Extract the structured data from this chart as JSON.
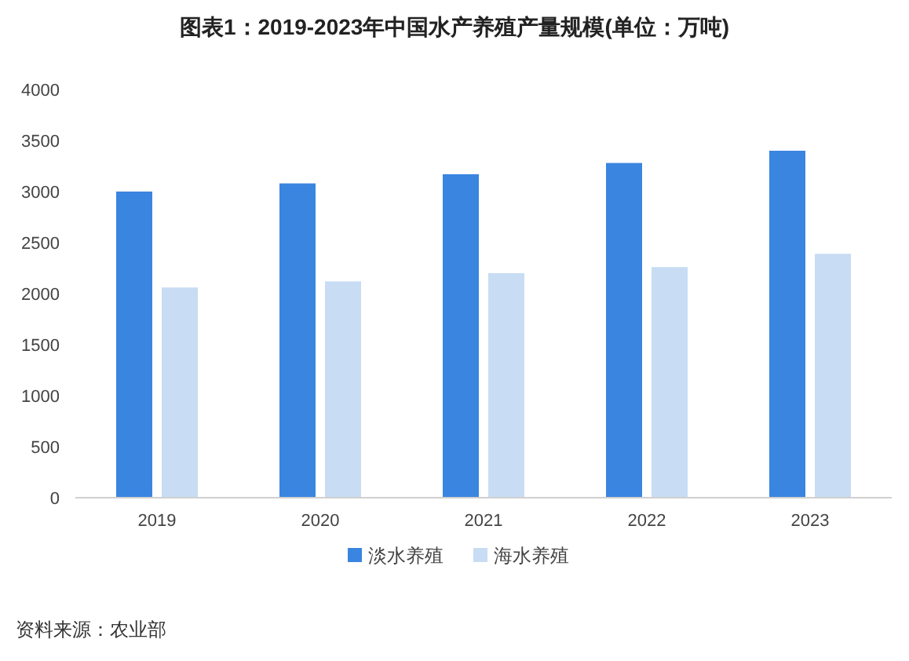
{
  "chart_data": {
    "type": "bar",
    "title": "图表1：2019-2023年中国水产养殖产量规模(单位：万吨)",
    "categories": [
      "2019",
      "2020",
      "2021",
      "2022",
      "2023"
    ],
    "series": [
      {
        "name": "淡水养殖",
        "color": "#3a85e0",
        "values": [
          3000,
          3080,
          3170,
          3280,
          3400
        ]
      },
      {
        "name": "海水养殖",
        "color": "#c8dcf4",
        "values": [
          2060,
          2120,
          2200,
          2260,
          2390
        ]
      }
    ],
    "ylim": [
      0,
      4000
    ],
    "yticks": [
      0,
      500,
      1000,
      1500,
      2000,
      2500,
      3000,
      3500,
      4000
    ],
    "grid": false,
    "legend": "bottom",
    "annotations": [
      "资料来源：农业部"
    ]
  }
}
